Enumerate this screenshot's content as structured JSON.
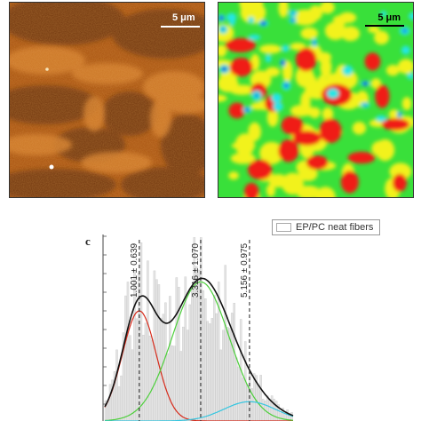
{
  "panels": {
    "afm": {
      "scale_label": "5 μm",
      "colors": {
        "base": "#a8520f",
        "light": "#d98a3a",
        "dark": "#5a2a08"
      }
    },
    "map": {
      "scale_label": "5 μm",
      "colors": {
        "green": "#39e03a",
        "yellow": "#f2f21a",
        "red": "#f01c14",
        "cyan": "#20e6e6",
        "blue": "#1a3ad8"
      }
    }
  },
  "histogram": {
    "panel_letter": "c",
    "legend_label": "EP/PC neat fibers",
    "peaks": [
      {
        "label": "1.001 ± 0.639",
        "color": "#d62a1a"
      },
      {
        "label": "3.316 ± 1.070",
        "color": "#4ccf3a"
      },
      {
        "label": "5.156 ± 0.975",
        "color": "#34c6e0"
      }
    ],
    "envelope_color": "#111111"
  },
  "chart_data": {
    "type": "bar",
    "title": "",
    "xlabel": "",
    "ylabel": "",
    "series": [
      {
        "name": "EP/PC neat fibers",
        "type": "histogram"
      }
    ],
    "fits": [
      {
        "center": 1.001,
        "sd": 0.639
      },
      {
        "center": 3.316,
        "sd": 1.07
      },
      {
        "center": 5.156,
        "sd": 0.975
      }
    ],
    "legend": "top-right"
  }
}
